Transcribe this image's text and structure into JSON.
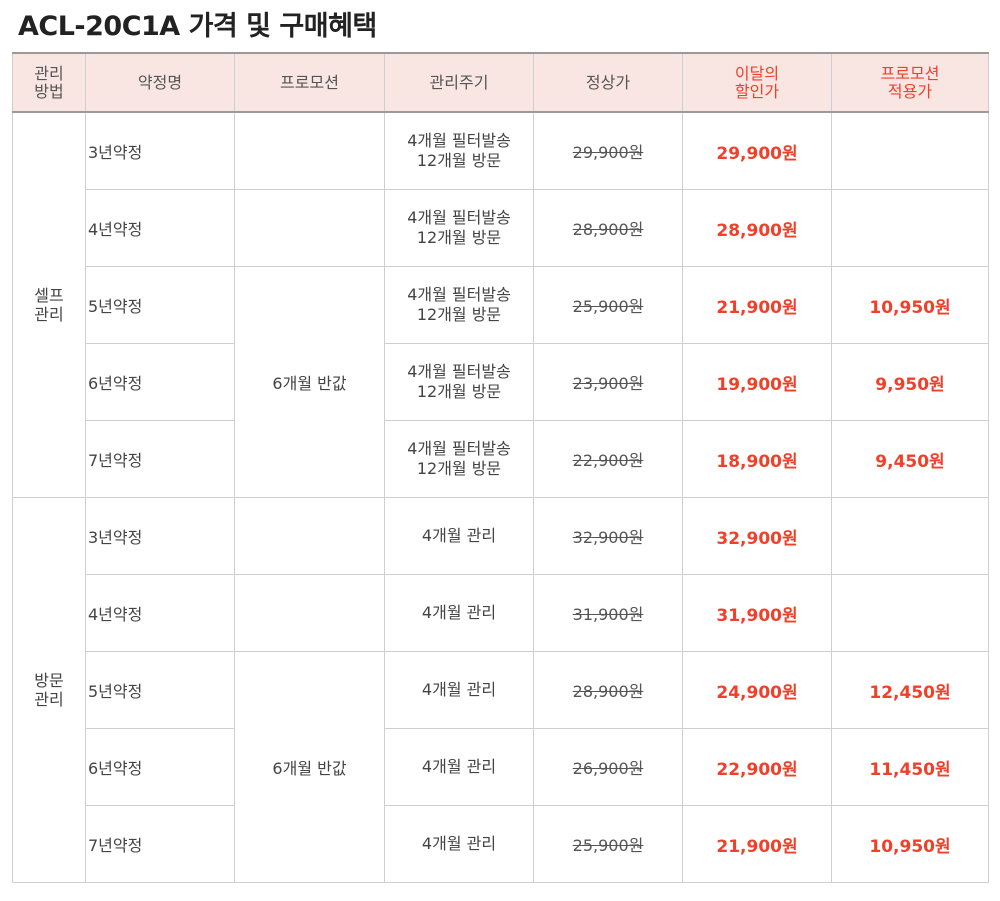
{
  "title": "ACL-20C1A 가격 및 구매혜택",
  "headers": {
    "method": "관리\n방법",
    "plan": "약정명",
    "promotion": "프로모션",
    "cycle": "관리주기",
    "regular": "정상가",
    "discount": "이달의\n할인가",
    "promo_price": "프로모션\n적용가"
  },
  "groups": [
    {
      "method": "셀프\n관리",
      "promotion_label": "6개월 반값",
      "rows": [
        {
          "plan": "3년약정",
          "cycle": "4개월 필터발송\n12개월 방문",
          "regular": "29,900원",
          "discount": "29,900원",
          "promo": ""
        },
        {
          "plan": "4년약정",
          "cycle": "4개월 필터발송\n12개월 방문",
          "regular": "28,900원",
          "discount": "28,900원",
          "promo": ""
        },
        {
          "plan": "5년약정",
          "cycle": "4개월 필터발송\n12개월 방문",
          "regular": "25,900원",
          "discount": "21,900원",
          "promo": "10,950원"
        },
        {
          "plan": "6년약정",
          "cycle": "4개월 필터발송\n12개월 방문",
          "regular": "23,900원",
          "discount": "19,900원",
          "promo": "9,950원"
        },
        {
          "plan": "7년약정",
          "cycle": "4개월 필터발송\n12개월 방문",
          "regular": "22,900원",
          "discount": "18,900원",
          "promo": "9,450원"
        }
      ]
    },
    {
      "method": "방문\n관리",
      "promotion_label": "6개월 반값",
      "rows": [
        {
          "plan": "3년약정",
          "cycle": "4개월 관리",
          "regular": "32,900원",
          "discount": "32,900원",
          "promo": ""
        },
        {
          "plan": "4년약정",
          "cycle": "4개월 관리",
          "regular": "31,900원",
          "discount": "31,900원",
          "promo": ""
        },
        {
          "plan": "5년약정",
          "cycle": "4개월 관리",
          "regular": "28,900원",
          "discount": "24,900원",
          "promo": "12,450원"
        },
        {
          "plan": "6년약정",
          "cycle": "4개월 관리",
          "regular": "26,900원",
          "discount": "22,900원",
          "promo": "11,450원"
        },
        {
          "plan": "7년약정",
          "cycle": "4개월 관리",
          "regular": "25,900원",
          "discount": "21,900원",
          "promo": "10,950원"
        }
      ]
    }
  ],
  "colors": {
    "accent": "#f0402a",
    "header_bg": "#f9e6e2"
  }
}
